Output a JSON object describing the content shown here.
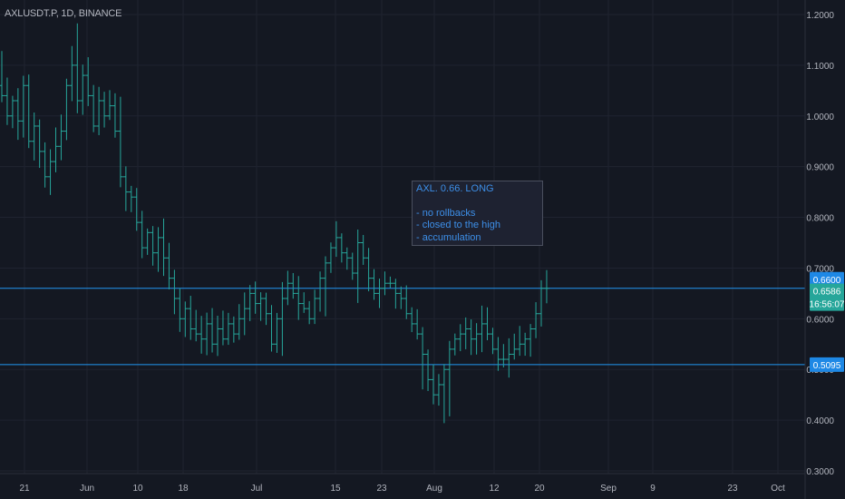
{
  "symbol_title": "AXLUSDT.P, 1D, BINANCE",
  "note": {
    "title": "AXL. 0.66. LONG",
    "lines": [
      "- no rollbacks",
      "- closed to the high",
      "- accumulation"
    ]
  },
  "colors": {
    "background": "#141822",
    "grid": "#1f2330",
    "bar": "#26a69a",
    "level_line": "#2196f3",
    "axis_text": "#b2b5be",
    "price_tag_bg": "#26a69a",
    "level_tag_bg": "#1e88e5"
  },
  "chart_data": {
    "type": "ohlc",
    "y_ticks": [
      "1.2000",
      "1.1000",
      "1.0000",
      "0.9000",
      "0.8000",
      "0.7000",
      "0.6000",
      "0.5000",
      "0.4000",
      "0.3000"
    ],
    "x_ticks": [
      "21",
      "Jun",
      "10",
      "18",
      "Jul",
      "15",
      "23",
      "Aug",
      "12",
      "20",
      "Sep",
      "9",
      "23",
      "Oct"
    ],
    "ylim": [
      0.3,
      1.2
    ],
    "horizontal_lines": [
      {
        "price": 0.66,
        "label": "0.6600"
      },
      {
        "price": 0.5095,
        "label": "0.5095"
      }
    ],
    "current_price": {
      "price": "0.6586",
      "countdown": "16:56:07"
    },
    "closes": [
      1.04,
      1.0,
      1.03,
      0.99,
      1.06,
      0.95,
      0.98,
      0.93,
      0.88,
      0.91,
      0.94,
      0.97,
      1.06,
      1.1,
      1.03,
      1.08,
      1.04,
      0.98,
      1.03,
      1.0,
      1.02,
      0.97,
      0.88,
      0.85,
      0.84,
      0.79,
      0.74,
      0.77,
      0.73,
      0.76,
      0.72,
      0.68,
      0.64,
      0.6,
      0.62,
      0.58,
      0.57,
      0.56,
      0.59,
      0.55,
      0.58,
      0.56,
      0.59,
      0.57,
      0.6,
      0.62,
      0.65,
      0.63,
      0.64,
      0.61,
      0.55,
      0.6,
      0.64,
      0.67,
      0.65,
      0.63,
      0.62,
      0.6,
      0.64,
      0.68,
      0.71,
      0.74,
      0.76,
      0.73,
      0.72,
      0.69,
      0.75,
      0.72,
      0.68,
      0.65,
      0.66,
      0.67,
      0.67,
      0.65,
      0.64,
      0.61,
      0.59,
      0.57,
      0.53,
      0.48,
      0.45,
      0.47,
      0.5,
      0.54,
      0.56,
      0.57,
      0.58,
      0.56,
      0.57,
      0.59,
      0.57,
      0.54,
      0.52,
      0.52,
      0.53,
      0.54,
      0.55,
      0.56,
      0.58,
      0.61,
      0.66,
      0.66
    ]
  }
}
